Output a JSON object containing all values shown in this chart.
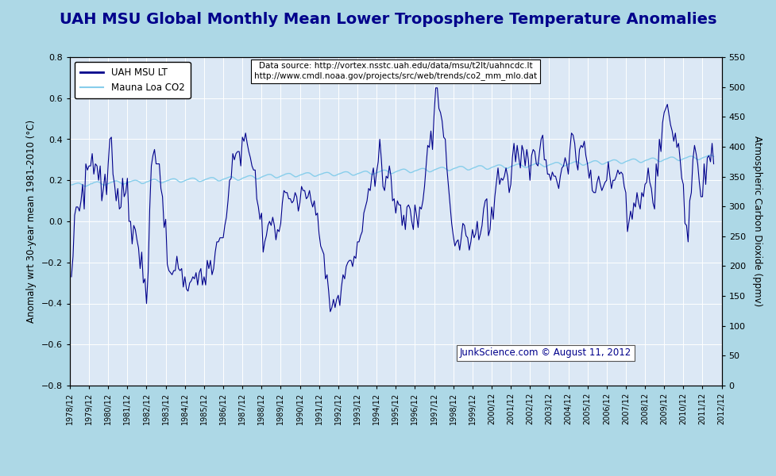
{
  "title": "UAH MSU Global Monthly Mean Lower Troposphere Temperature Anomalies",
  "title_color": "#00008B",
  "background_color": "#ADD8E6",
  "plot_bg_color": "#DCE8F5",
  "ylabel_left": "Anomaly wrt 30-year mean 1981-2010 (°C)",
  "ylabel_right": "Atmospheric Carbon Dioxide (ppmv)",
  "ylim_left": [
    -0.8,
    0.8
  ],
  "ylim_right": [
    0,
    550
  ],
  "datasource_text": "Data source: http://vortex.nsstc.uah.edu/data/msu/t2lt/uahncdc.lt\nhttp://www.cmdl.noaa.gov/projects/src/web/trends/co2_mm_mlo.dat",
  "copyright_text": "JunkScience.com © August 11, 2012",
  "uah_color": "#00008B",
  "co2_color": "#87CEEB",
  "legend_uah": "UAH MSU LT",
  "legend_co2": "Mauna Loa CO2"
}
